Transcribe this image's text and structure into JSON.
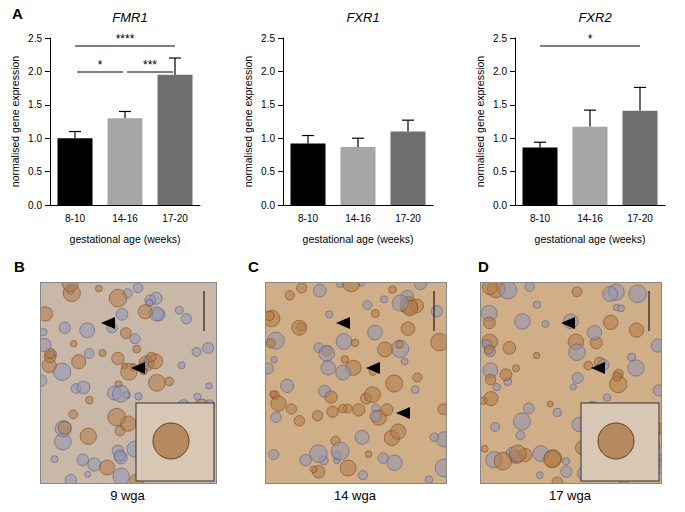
{
  "chart_data": [
    {
      "type": "bar",
      "title": "FMR1",
      "categories": [
        "8-10",
        "14-16",
        "17-20"
      ],
      "values": [
        1.0,
        1.3,
        1.95
      ],
      "errors": [
        0.1,
        0.1,
        0.25
      ],
      "colors": [
        "#000000",
        "#a6a6a6",
        "#6e6e6e"
      ],
      "x_label": "gestational age (weeks)",
      "y_label": "normalised gene expression",
      "ylim": [
        0,
        2.5
      ],
      "yticks": [
        {
          "value": 0,
          "label": "0.0"
        },
        {
          "value": 0.5,
          "label": "0.5"
        },
        {
          "value": 1,
          "label": "1.0"
        },
        {
          "value": 1.5,
          "label": "1.5"
        },
        {
          "value": 2,
          "label": "2.0"
        },
        {
          "value": 2.5,
          "label": "2.5"
        }
      ],
      "grid": false,
      "significance": [
        {
          "from": "8-10",
          "to": "14-16",
          "label": "*"
        },
        {
          "from": "14-16",
          "to": "17-20",
          "label": "***"
        },
        {
          "from": "8-10",
          "to": "17-20",
          "label": "****"
        }
      ]
    },
    {
      "type": "bar",
      "title": "FXR1",
      "categories": [
        "8-10",
        "14-16",
        "17-20"
      ],
      "values": [
        0.92,
        0.87,
        1.1
      ],
      "errors": [
        0.12,
        0.13,
        0.17
      ],
      "colors": [
        "#000000",
        "#a6a6a6",
        "#6e6e6e"
      ],
      "x_label": "gestational age (weeks)",
      "y_label": "normalised gene expression",
      "ylim": [
        0,
        2.5
      ],
      "yticks": [
        {
          "value": 0,
          "label": "0.0"
        },
        {
          "value": 0.5,
          "label": "0.5"
        },
        {
          "value": 1,
          "label": "1.0"
        },
        {
          "value": 1.5,
          "label": "1.5"
        },
        {
          "value": 2,
          "label": "2.0"
        },
        {
          "value": 2.5,
          "label": "2.5"
        }
      ],
      "grid": false,
      "significance": []
    },
    {
      "type": "bar",
      "title": "FXR2",
      "categories": [
        "8-10",
        "14-16",
        "17-20"
      ],
      "values": [
        0.86,
        1.17,
        1.41
      ],
      "errors": [
        0.08,
        0.25,
        0.35
      ],
      "colors": [
        "#000000",
        "#a6a6a6",
        "#6e6e6e"
      ],
      "x_label": "gestational age (weeks)",
      "y_label": "normalised gene expression",
      "ylim": [
        0,
        2.5
      ],
      "yticks": [
        {
          "value": 0,
          "label": "0.0"
        },
        {
          "value": 0.5,
          "label": "0.5"
        },
        {
          "value": 1,
          "label": "1.0"
        },
        {
          "value": 1.5,
          "label": "1.5"
        },
        {
          "value": 2,
          "label": "2.0"
        },
        {
          "value": 2.5,
          "label": "2.5"
        }
      ],
      "grid": false,
      "significance": [
        {
          "from": "8-10",
          "to": "17-20",
          "label": "*"
        }
      ]
    }
  ],
  "figure": {
    "chart_panel": "A",
    "image_panels": [
      {
        "panel": "B",
        "caption": "9 wga"
      },
      {
        "panel": "C",
        "caption": "14 wga"
      },
      {
        "panel": "D",
        "caption": "17 wga"
      }
    ]
  }
}
